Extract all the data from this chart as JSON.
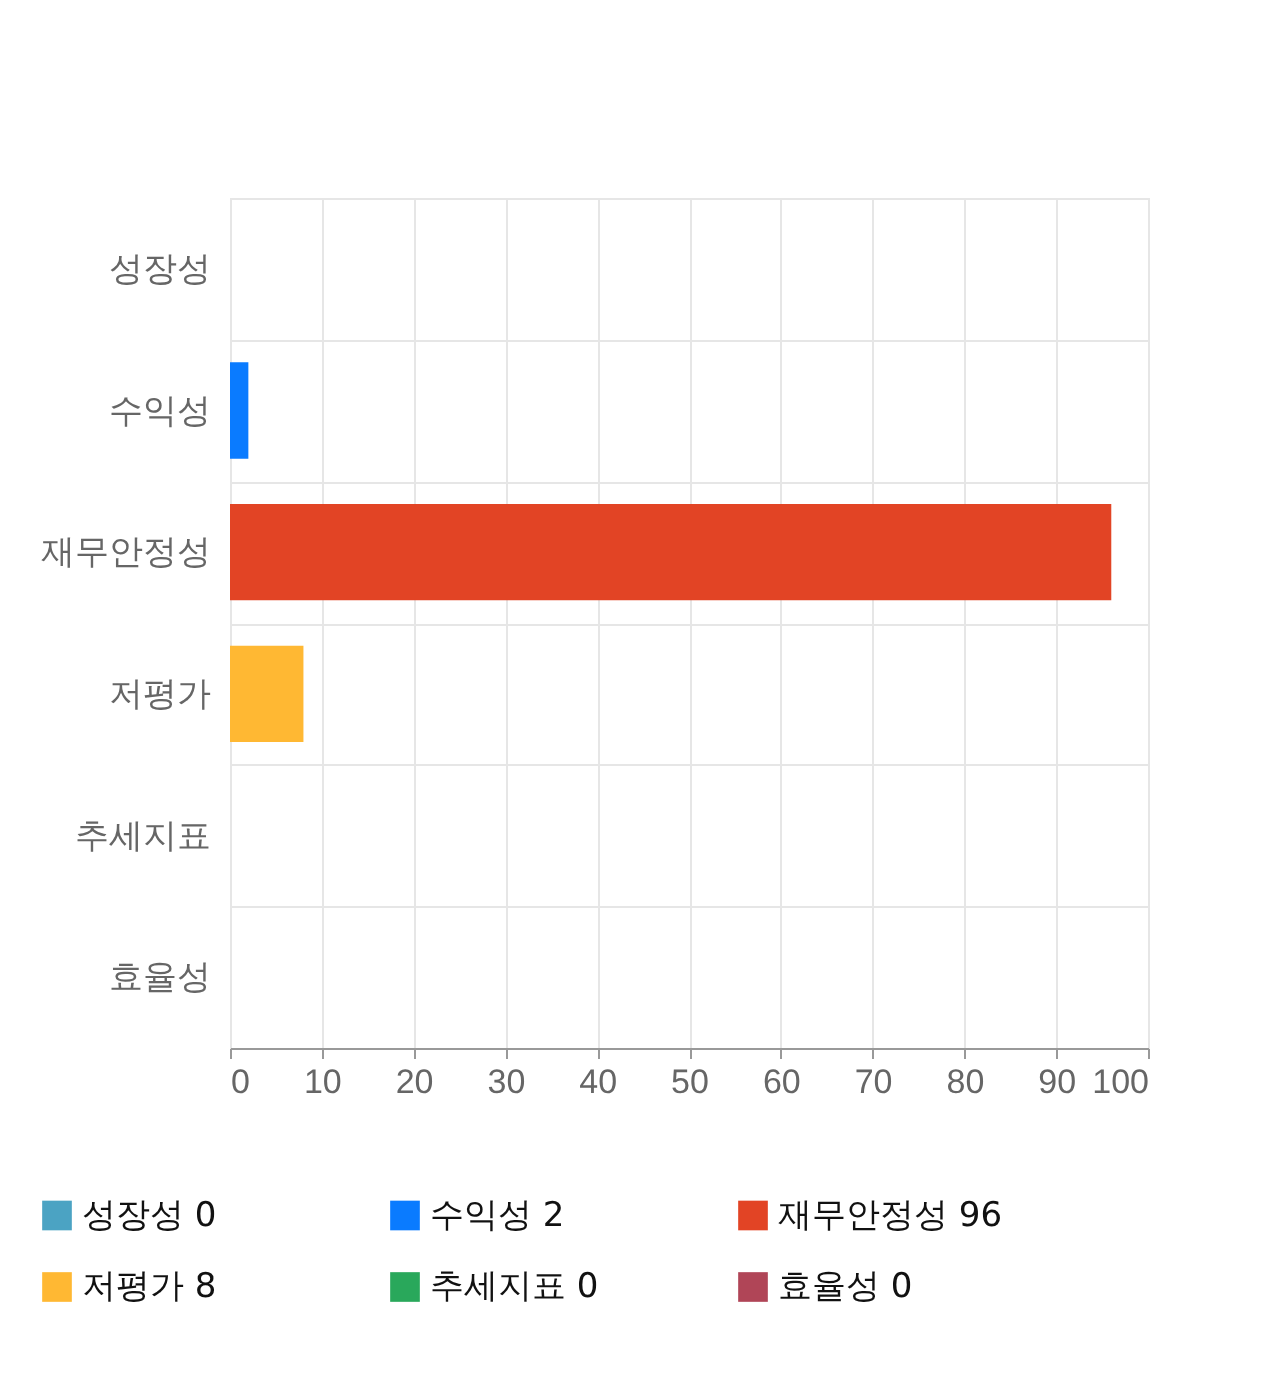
{
  "chart_data": {
    "type": "bar",
    "orientation": "horizontal",
    "categories": [
      "성장성",
      "수익성",
      "재무안정성",
      "저평가",
      "추세지표",
      "효율성"
    ],
    "series": [
      {
        "name": "성장성 0",
        "color": "#4ba3c3",
        "values": [
          0,
          null,
          null,
          null,
          null,
          null
        ]
      },
      {
        "name": "수익성 2",
        "color": "#0a7bff",
        "values": [
          null,
          2,
          null,
          null,
          null,
          null
        ]
      },
      {
        "name": "재무안정성 96",
        "color": "#e24425",
        "values": [
          null,
          null,
          96,
          null,
          null,
          null
        ]
      },
      {
        "name": "저평가 8",
        "color": "#ffb833",
        "values": [
          null,
          null,
          null,
          8,
          null,
          null
        ]
      },
      {
        "name": "추세지표 0",
        "color": "#29a85b",
        "values": [
          null,
          null,
          null,
          null,
          0,
          null
        ]
      },
      {
        "name": "효율성 0",
        "color": "#b04557",
        "values": [
          null,
          null,
          null,
          null,
          null,
          0
        ]
      }
    ],
    "xlim": [
      0,
      100
    ],
    "xticks": [
      0,
      10,
      20,
      30,
      40,
      50,
      60,
      70,
      80,
      90,
      100
    ],
    "grid": true,
    "legend": "bottom"
  }
}
